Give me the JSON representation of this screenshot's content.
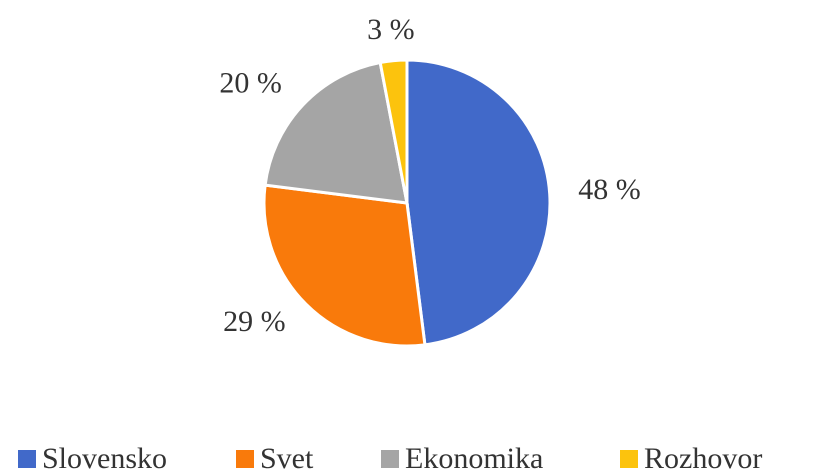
{
  "chart_data": {
    "type": "pie",
    "categories": [
      "Slovensko",
      "Svet",
      "Ekonomika",
      "Rozhovor"
    ],
    "values": [
      48,
      29,
      20,
      3
    ],
    "value_labels": [
      "48 %",
      "29 %",
      "20 %",
      "3 %"
    ],
    "colors": [
      "#4169c9",
      "#f97a0b",
      "#a5a5a5",
      "#fcc30d"
    ],
    "legend": "bottom"
  }
}
